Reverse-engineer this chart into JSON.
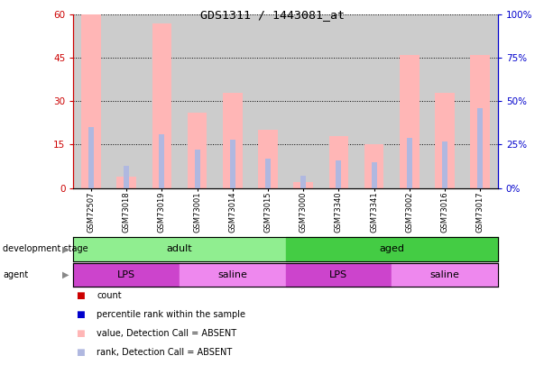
{
  "title": "GDS1311 / 1443081_at",
  "samples": [
    "GSM72507",
    "GSM73018",
    "GSM73019",
    "GSM73001",
    "GSM73014",
    "GSM73015",
    "GSM73000",
    "GSM73340",
    "GSM73341",
    "GSM73002",
    "GSM73016",
    "GSM73017"
  ],
  "value_bars": [
    60,
    4,
    57,
    26,
    33,
    20,
    2,
    18,
    15,
    46,
    33,
    46
  ],
  "rank_bars": [
    35,
    13,
    31,
    22,
    28,
    17,
    7,
    16,
    15,
    29,
    27,
    46
  ],
  "left_ylim": [
    0,
    60
  ],
  "right_ylim": [
    0,
    100
  ],
  "left_yticks": [
    0,
    15,
    30,
    45,
    60
  ],
  "right_yticks": [
    0,
    25,
    50,
    75,
    100
  ],
  "left_yticklabels": [
    "0",
    "15",
    "30",
    "45",
    "60"
  ],
  "right_yticklabels": [
    "0%",
    "25%",
    "50%",
    "75%",
    "100%"
  ],
  "bar_color_absent": "#FFB6B6",
  "rank_color_absent": "#B0B8E0",
  "left_axis_color": "#CC0000",
  "right_axis_color": "#0000CC",
  "grid_color": "black",
  "bg_color": "#CCCCCC",
  "development_stage_label": "development stage",
  "agent_label": "agent",
  "dev_groups": [
    {
      "label": "adult",
      "start": 0,
      "end": 6,
      "color": "#90EE90"
    },
    {
      "label": "aged",
      "start": 6,
      "end": 12,
      "color": "#44CC44"
    }
  ],
  "agent_groups": [
    {
      "label": "LPS",
      "start": 0,
      "end": 3,
      "color": "#CC44CC"
    },
    {
      "label": "saline",
      "start": 3,
      "end": 6,
      "color": "#EE88EE"
    },
    {
      "label": "LPS",
      "start": 6,
      "end": 9,
      "color": "#CC44CC"
    },
    {
      "label": "saline",
      "start": 9,
      "end": 12,
      "color": "#EE88EE"
    }
  ],
  "legend_items": [
    {
      "label": "count",
      "color": "#CC0000"
    },
    {
      "label": "percentile rank within the sample",
      "color": "#0000CC"
    },
    {
      "label": "value, Detection Call = ABSENT",
      "color": "#FFB6B6"
    },
    {
      "label": "rank, Detection Call = ABSENT",
      "color": "#B0B8E0"
    }
  ]
}
